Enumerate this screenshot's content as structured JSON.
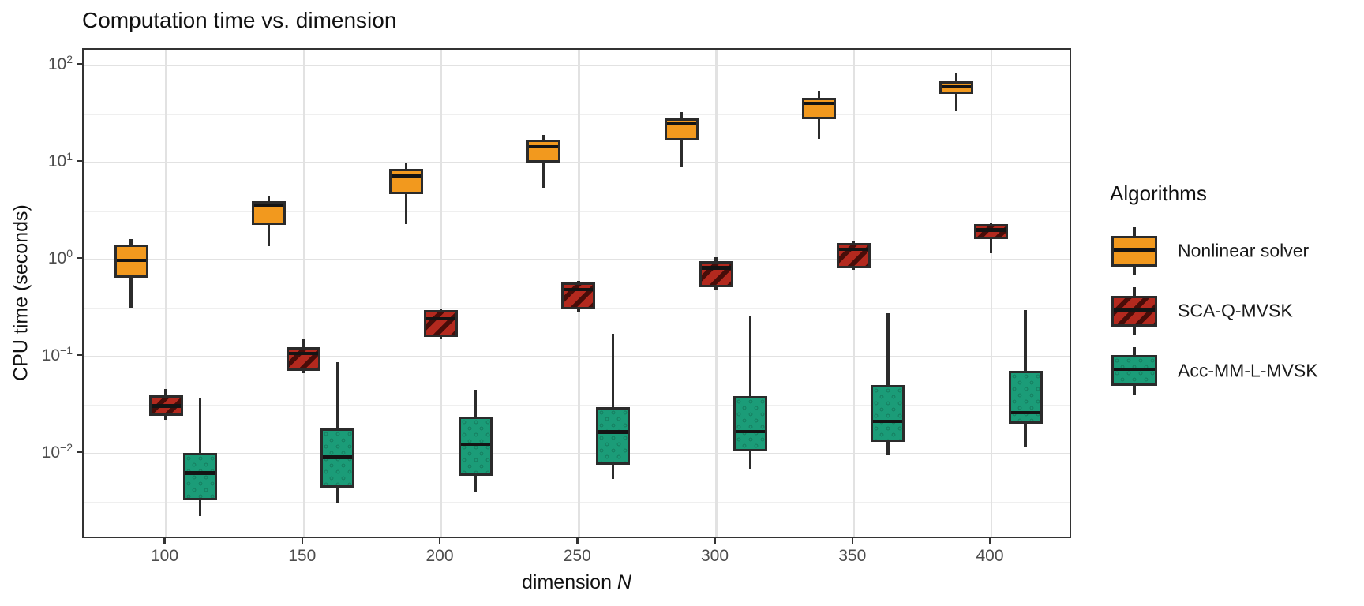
{
  "chart_data": {
    "type": "boxplot",
    "title": "Computation time vs. dimension",
    "xlabel": "dimension N",
    "xlabel_regular": "dimension ",
    "xlabel_italic": "N",
    "ylabel": "CPU time (seconds)",
    "x_scale": "linear",
    "y_scale": "log10",
    "x_tick_values": [
      100,
      150,
      200,
      250,
      300,
      350,
      400
    ],
    "x_tick_labels": [
      "100",
      "150",
      "200",
      "250",
      "300",
      "350",
      "400"
    ],
    "y_tick_exponents": [
      2,
      1,
      0,
      -1,
      -2
    ],
    "y_tick_labels": [
      "10²",
      "10¹",
      "10⁰",
      "10⁻¹",
      "10⁻²"
    ],
    "y_minor_exponents": [
      1.5,
      0.5,
      -0.5,
      -1.5,
      -2.5
    ],
    "xlim": [
      69,
      430
    ],
    "ylim": [
      0.0013,
      145
    ],
    "grid": {
      "major": true,
      "minor_y": true,
      "vertical_major": true
    },
    "legend": {
      "title": "Algorithms",
      "position": "right"
    },
    "series": [
      {
        "name": "Nonlinear solver",
        "color": "#F2991E",
        "pattern": "solid",
        "boxes": [
          {
            "x": 100,
            "whislo": 0.32,
            "q1": 0.65,
            "med": 1.02,
            "q3": 1.42,
            "whishi": 1.64
          },
          {
            "x": 150,
            "whislo": 1.37,
            "q1": 2.27,
            "med": 3.78,
            "q3": 4.02,
            "whishi": 4.45
          },
          {
            "x": 200,
            "whislo": 2.31,
            "q1": 4.73,
            "med": 7.5,
            "q3": 8.65,
            "whishi": 9.8
          },
          {
            "x": 250,
            "whislo": 5.5,
            "q1": 10.0,
            "med": 15.2,
            "q3": 17.2,
            "whishi": 19.2
          },
          {
            "x": 300,
            "whislo": 8.9,
            "q1": 16.9,
            "med": 26.0,
            "q3": 28.7,
            "whishi": 33.0
          },
          {
            "x": 350,
            "whislo": 17.4,
            "q1": 28.0,
            "med": 42.5,
            "q3": 46.0,
            "whishi": 55.0
          },
          {
            "x": 400,
            "whislo": 33.6,
            "q1": 50.7,
            "med": 63.0,
            "q3": 69.0,
            "whishi": 83.0
          }
        ]
      },
      {
        "name": "SCA-Q-MVSK",
        "color": "#B3291E",
        "hatch_color": "#470D09",
        "pattern": "hatch",
        "boxes": [
          {
            "x": 100,
            "whislo": 0.0225,
            "q1": 0.0245,
            "med": 0.0325,
            "q3": 0.04,
            "whishi": 0.046
          },
          {
            "x": 150,
            "whislo": 0.068,
            "q1": 0.072,
            "med": 0.112,
            "q3": 0.125,
            "whishi": 0.155
          },
          {
            "x": 200,
            "whislo": 0.155,
            "q1": 0.16,
            "med": 0.255,
            "q3": 0.3,
            "whishi": 0.31
          },
          {
            "x": 250,
            "whislo": 0.29,
            "q1": 0.31,
            "med": 0.51,
            "q3": 0.58,
            "whishi": 0.6
          },
          {
            "x": 300,
            "whislo": 0.48,
            "q1": 0.52,
            "med": 0.86,
            "q3": 0.97,
            "whishi": 1.05
          },
          {
            "x": 350,
            "whislo": 0.78,
            "q1": 0.81,
            "med": 1.33,
            "q3": 1.48,
            "whishi": 1.55
          },
          {
            "x": 400,
            "whislo": 1.17,
            "q1": 1.63,
            "med": 2.1,
            "q3": 2.32,
            "whishi": 2.4
          }
        ]
      },
      {
        "name": "Acc-MM-L-MVSK",
        "color": "#1B9C78",
        "pattern": "dots",
        "boxes": [
          {
            "x": 100,
            "whislo": 0.0023,
            "q1": 0.0033,
            "med": 0.0066,
            "q3": 0.0101,
            "whishi": 0.037
          },
          {
            "x": 150,
            "whislo": 0.0031,
            "q1": 0.0045,
            "med": 0.0096,
            "q3": 0.0182,
            "whishi": 0.088
          },
          {
            "x": 200,
            "whislo": 0.004,
            "q1": 0.0059,
            "med": 0.0131,
            "q3": 0.024,
            "whishi": 0.0455
          },
          {
            "x": 250,
            "whislo": 0.0055,
            "q1": 0.0077,
            "med": 0.0175,
            "q3": 0.03,
            "whishi": 0.171
          },
          {
            "x": 300,
            "whislo": 0.007,
            "q1": 0.0105,
            "med": 0.0176,
            "q3": 0.0395,
            "whishi": 0.267
          },
          {
            "x": 350,
            "whislo": 0.0096,
            "q1": 0.0133,
            "med": 0.0225,
            "q3": 0.051,
            "whishi": 0.28
          },
          {
            "x": 400,
            "whislo": 0.0119,
            "q1": 0.0202,
            "med": 0.0277,
            "q3": 0.071,
            "whishi": 0.3
          }
        ]
      }
    ]
  },
  "style": {
    "panel_border": "#333333",
    "grid_major": "#E2E2E2",
    "grid_minor": "#EFEFEF",
    "tick_label_color": "#4D4D4D",
    "box_border": "#2B2B2B",
    "median_color": "#141414"
  }
}
